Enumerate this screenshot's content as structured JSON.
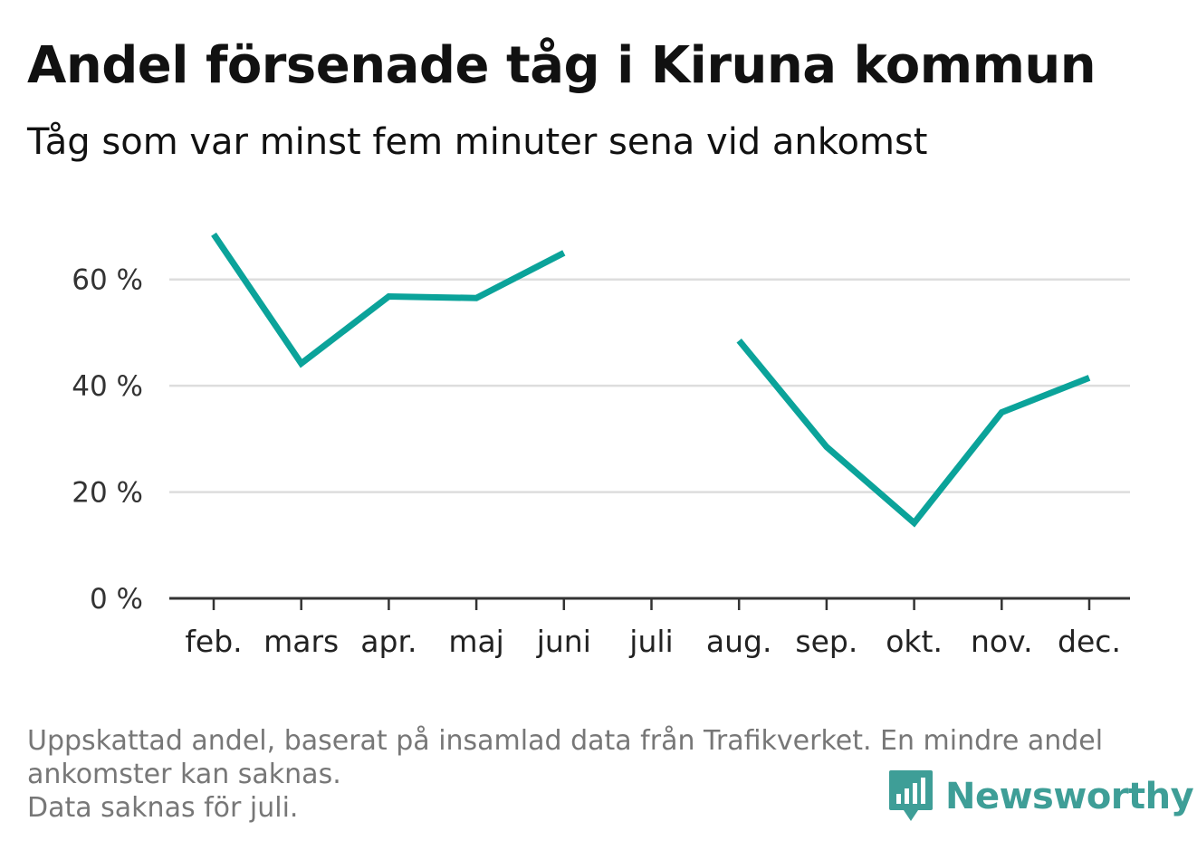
{
  "title": "Andel försenade tåg i Kiruna kommun",
  "subtitle": "Tåg som var minst fem minuter sena vid ankomst",
  "footnote": {
    "line1": "Uppskattad andel, baserat på insamlad data från Trafikverket. En mindre andel",
    "line2": "ankomster kan saknas.",
    "line3": "Data saknas för juli."
  },
  "brand": {
    "name": "Newsworthy",
    "icon": "newsworthy-chart-bubble-icon",
    "color": "#3e9e97"
  },
  "chart_data": {
    "type": "line",
    "categories": [
      "feb.",
      "mars",
      "apr.",
      "maj",
      "juni",
      "juli",
      "aug.",
      "sep.",
      "okt.",
      "nov.",
      "dec."
    ],
    "series": [
      {
        "values": [
          68.5,
          44.2,
          56.8,
          56.5,
          65.0,
          null,
          48.5,
          28.5,
          14.2,
          35.0,
          41.5
        ]
      }
    ],
    "y_ticks": [
      0,
      20,
      40,
      60
    ],
    "y_tick_labels": [
      "0 %",
      "20 %",
      "40 %",
      "60 %"
    ],
    "ylim": [
      0,
      70
    ],
    "xlabel": "",
    "ylabel": "",
    "grid": true,
    "line_color": "#0ba39a",
    "grid_color": "#dddddd",
    "axis_color": "#333333"
  }
}
